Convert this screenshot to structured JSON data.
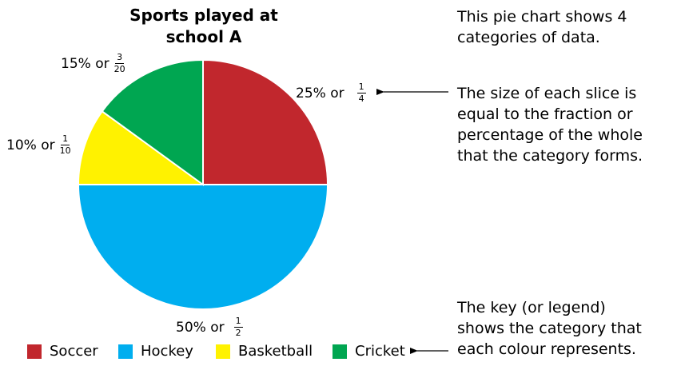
{
  "chart_data": {
    "type": "pie",
    "title": "Sports played at school A",
    "title_line1": "Sports played at",
    "title_line2": "school A",
    "slices": [
      {
        "name": "Soccer",
        "value": 25,
        "percent_text": "25% or",
        "num": "1",
        "den": "4",
        "color": "#C1272D"
      },
      {
        "name": "Hockey",
        "value": 50,
        "percent_text": "50% or",
        "num": "1",
        "den": "2",
        "color": "#00AEEF"
      },
      {
        "name": "Basketball",
        "value": 10,
        "percent_text": "10% or",
        "num": "1",
        "den": "10",
        "color": "#FFF200"
      },
      {
        "name": "Cricket",
        "value": 15,
        "percent_text": "15% or",
        "num": "3",
        "den": "20",
        "color": "#00A651"
      }
    ],
    "legend_placement": "bottom"
  },
  "annotations": {
    "a1": [
      "This pie chart shows 4",
      "categories of data."
    ],
    "a2": [
      "The size of each slice is",
      "equal to the fraction or",
      "percentage of the whole",
      "that the category forms."
    ],
    "a3": [
      "The key (or legend)",
      "shows the category that",
      "each colour represents."
    ]
  }
}
